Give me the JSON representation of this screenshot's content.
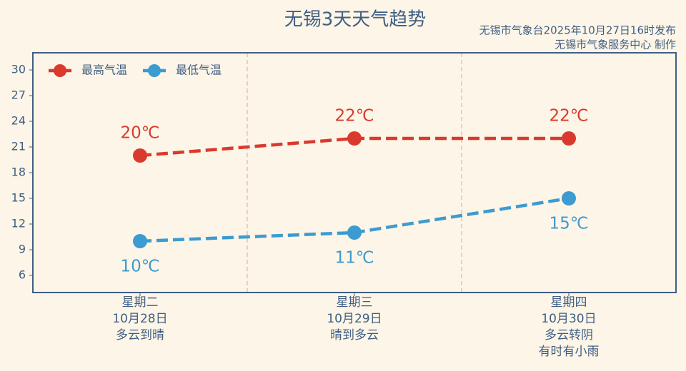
{
  "chart_data": {
    "type": "line",
    "title": "无锡3天天气趋势",
    "source": [
      "无锡市气象台2025年10月27日16时发布",
      "无锡市气象服务中心 制作"
    ],
    "categories": [
      [
        "星期二",
        "10月28日",
        "多云到晴"
      ],
      [
        "星期三",
        "10月29日",
        "晴到多云"
      ],
      [
        "星期四",
        "10月30日",
        "多云转阴",
        "有时有小雨"
      ]
    ],
    "series": [
      {
        "name": "最高气温",
        "color": "#d93a2d",
        "values": [
          20,
          22,
          22
        ],
        "value_labels": [
          "20℃",
          "22℃",
          "22℃"
        ]
      },
      {
        "name": "最低气温",
        "color": "#3c9bd0",
        "values": [
          10,
          11,
          15
        ],
        "value_labels": [
          "10℃",
          "11℃",
          "15℃"
        ]
      }
    ],
    "ylim": [
      4,
      32
    ],
    "yticks": [
      6,
      9,
      12,
      15,
      18,
      21,
      24,
      27,
      30
    ],
    "legend": "upper left"
  }
}
